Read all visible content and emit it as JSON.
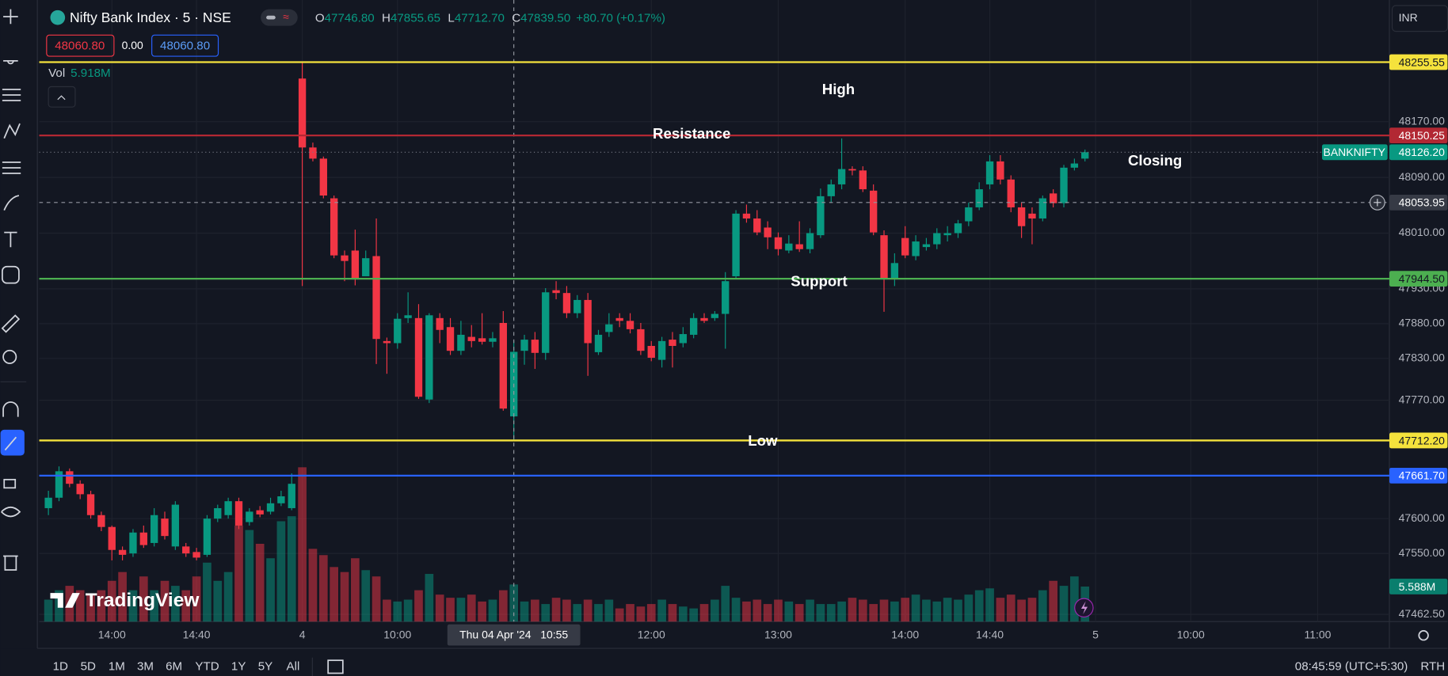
{
  "header": {
    "symbol": "Nifty Bank Index · 5 · NSE",
    "ohlc": [
      {
        "key": "O",
        "value": "47746.80"
      },
      {
        "key": "H",
        "value": "47855.65"
      },
      {
        "key": "L",
        "value": "47712.70"
      },
      {
        "key": "C",
        "value": "47839.50"
      }
    ],
    "change": "+80.70 (+0.17%)",
    "sell_price": "48060.80",
    "spread": "0.00",
    "buy_price": "48060.80",
    "volume_legend": {
      "name": "Vol",
      "value": "5.918M"
    },
    "currency": "INR"
  },
  "chart_data": {
    "type": "candlestick",
    "up_color": "#089981",
    "down_color": "#f23645",
    "x": [
      0,
      1,
      2,
      3,
      4,
      5,
      6,
      7,
      8,
      9,
      10,
      11,
      12,
      13,
      14,
      15,
      16,
      17,
      18,
      19,
      20,
      21,
      22,
      23,
      24,
      25,
      26,
      27,
      28,
      29,
      30,
      31,
      32,
      33,
      34,
      35,
      36,
      37,
      38,
      39,
      40,
      41,
      42,
      43,
      44,
      45,
      46,
      47,
      48,
      49,
      50,
      51,
      52,
      53,
      54,
      55,
      56,
      57,
      58,
      59,
      60,
      61,
      62,
      63,
      64,
      65,
      66,
      67,
      68,
      69,
      70,
      71,
      72,
      73,
      74,
      75,
      76,
      77,
      78,
      79,
      80,
      81,
      82,
      83,
      84,
      85,
      86,
      87,
      88,
      89,
      90,
      91,
      92,
      93,
      94,
      95,
      96,
      97,
      98
    ],
    "open": [
      47615,
      47630,
      47668,
      47650,
      47635,
      47605,
      47588,
      47555,
      47550,
      47580,
      47565,
      47600,
      47560,
      47560,
      47552,
      47548,
      47600,
      47605,
      47625,
      47595,
      47612,
      47610,
      47622,
      47615,
      48232,
      48133,
      48117,
      48060,
      47978,
      47985,
      47948,
      47977,
      47855,
      47852,
      47888,
      47888,
      47771,
      47888,
      47875,
      47841,
      47861,
      47859,
      47854,
      47881,
      47746.8,
      47841,
      47857,
      47838,
      47928,
      47924,
      47895,
      47914,
      47839,
      47868,
      47888,
      47884,
      47872,
      47848,
      47828,
      47857,
      47852,
      47864,
      47888,
      47888,
      47894,
      47948,
      48038,
      48031,
      48018,
      48004,
      47985,
      47994,
      47987,
      48007,
      48063,
      48080,
      48102,
      48100,
      48071,
      48007,
      47945,
      48003,
      47977,
      47990,
      47994,
      48007,
      48010,
      48027,
      48047,
      48080,
      48113,
      48087,
      48047,
      48038,
      48031,
      48067,
      48053,
      48104,
      48117
    ],
    "high": [
      47640,
      47675,
      47672,
      47655,
      47640,
      47610,
      47590,
      47560,
      47585,
      47590,
      47615,
      47610,
      47625,
      47565,
      47558,
      47605,
      47620,
      47630,
      47630,
      47615,
      47618,
      47630,
      47640,
      47665,
      48255.55,
      48140,
      48120,
      48064,
      47985,
      48015,
      47985,
      48031,
      47860,
      47895,
      47925,
      47908,
      47895,
      47895,
      47888,
      47884,
      47878,
      47895,
      47868,
      47898,
      47855.65,
      47864,
      47868,
      47931,
      47941,
      47934,
      47921,
      47924,
      47871,
      47895,
      47895,
      47895,
      47881,
      47855,
      47861,
      47868,
      47875,
      47895,
      47895,
      47898,
      47954,
      48043,
      48051,
      48043,
      48027,
      48011,
      48007,
      48027,
      48017,
      48074,
      48087,
      48146,
      48106,
      48106,
      48080,
      48014,
      47981,
      48020,
      48007,
      48003,
      48017,
      48020,
      48029,
      48054,
      48083,
      48122,
      48122,
      48093,
      48054,
      48047,
      48064,
      48073,
      48108,
      48117,
      48130
    ],
    "low": [
      47605,
      47625,
      47645,
      47628,
      47600,
      47582,
      47540,
      47540,
      47545,
      47558,
      47560,
      47570,
      47555,
      47545,
      47540,
      47545,
      47595,
      47600,
      47585,
      47590,
      47602,
      47606,
      47618,
      47612,
      47934,
      48113,
      48060,
      47974,
      47941,
      47935,
      47948,
      47822,
      47808,
      47844,
      47881,
      47772,
      47766,
      47852,
      47835,
      47835,
      47846,
      47850,
      47846,
      47755,
      47712.7,
      47821,
      47815,
      47828,
      47915,
      47888,
      47888,
      47805,
      47835,
      47861,
      47875,
      47866,
      47835,
      47826,
      47817,
      47817,
      47846,
      47859,
      47881,
      47884,
      47844,
      47945,
      48025,
      48007,
      47987,
      47978,
      47981,
      47983,
      47981,
      48003,
      48054,
      48073,
      48093,
      48069,
      48007,
      47897,
      47934,
      47974,
      47971,
      47985,
      47987,
      47998,
      48003,
      48020,
      48043,
      48073,
      48080,
      48040,
      48003,
      47994,
      48027,
      48047,
      48047,
      48100,
      48113
    ],
    "close": [
      47630,
      47668,
      47650,
      47635,
      47605,
      47588,
      47555,
      47548,
      47580,
      47562,
      47605,
      47575,
      47620,
      47550,
      47544,
      47600,
      47615,
      47625,
      47590,
      47610,
      47606,
      47622,
      47632,
      47650,
      48133,
      48117,
      48064,
      47978,
      47970,
      47945,
      47974,
      47858,
      47852,
      47887,
      47892,
      47775,
      47892,
      47871,
      47841,
      47864,
      47855,
      47854,
      47859,
      47758,
      47839.5,
      47857,
      47838,
      47925,
      47924,
      47895,
      47914,
      47852,
      47864,
      47879,
      47884,
      47872,
      47841,
      47831,
      47855,
      47848,
      47865,
      47888,
      47884,
      47894,
      47941,
      48038,
      48031,
      48011,
      48004,
      47987,
      47995,
      47987,
      48010,
      48063,
      48080,
      48102,
      48100,
      48073,
      48011,
      47945,
      47967,
      47978,
      47998,
      47994,
      48010,
      48010,
      48024,
      48047,
      48073,
      48113,
      48087,
      48047,
      48020,
      48031,
      48060,
      48053,
      48104,
      48110,
      48126.2
    ],
    "volume": [
      3.5,
      5.0,
      5.7,
      5.0,
      4.4,
      5.0,
      6.5,
      7.9,
      5.0,
      7.2,
      5.0,
      6.5,
      5.7,
      5.0,
      7.2,
      9.4,
      6.5,
      7.9,
      15.3,
      14.6,
      12.4,
      10.1,
      16.0,
      16.8,
      24.6,
      11.6,
      10.6,
      8.7,
      7.9,
      10.1,
      8.2,
      7.2,
      3.5,
      3.2,
      3.5,
      5.0,
      7.6,
      4.3,
      3.8,
      3.8,
      4.3,
      3.2,
      3.5,
      5.0,
      5.918,
      3.2,
      3.5,
      2.8,
      3.8,
      3.5,
      2.8,
      3.5,
      2.8,
      3.5,
      2.1,
      2.8,
      2.4,
      2.8,
      3.5,
      2.8,
      2.4,
      2.1,
      2.8,
      3.5,
      5.7,
      3.8,
      3.2,
      3.5,
      2.8,
      3.5,
      3.2,
      2.8,
      3.5,
      2.8,
      2.8,
      3.2,
      3.8,
      3.5,
      2.8,
      3.5,
      3.2,
      3.8,
      4.3,
      3.5,
      3.2,
      3.8,
      3.5,
      4.3,
      5.0,
      5.3,
      3.8,
      4.3,
      3.5,
      3.8,
      5.0,
      6.5,
      5.7,
      7.2,
      5.588
    ],
    "volume_lim": [
      0,
      99.1
    ],
    "volume_value_label": "5.588M",
    "xlim": [
      -0.87,
      126.78
    ],
    "xticks": [
      {
        "value": 6,
        "label": "14:00"
      },
      {
        "value": 14,
        "label": "14:40"
      },
      {
        "value": 24,
        "label": "4"
      },
      {
        "value": 33,
        "label": "10:00"
      },
      {
        "value": 57,
        "label": "12:00"
      },
      {
        "value": 69,
        "label": "13:00"
      },
      {
        "value": 81,
        "label": "14:00"
      },
      {
        "value": 89,
        "label": "14:40"
      },
      {
        "value": 99,
        "label": "5"
      },
      {
        "value": 108,
        "label": "10:00"
      },
      {
        "value": 120,
        "label": "11:00"
      }
    ],
    "ylim": [
      47452.1,
      48344.8
    ],
    "yticks": [
      {
        "value": 48170,
        "label": "48170.00"
      },
      {
        "value": 48090,
        "label": "48090.00"
      },
      {
        "value": 48010,
        "label": "48010.00"
      },
      {
        "value": 47930,
        "label": "47930.00"
      },
      {
        "value": 47880,
        "label": "47880.00"
      },
      {
        "value": 47830,
        "label": "47830.00"
      },
      {
        "value": 47770,
        "label": "47770.00"
      },
      {
        "value": 47600,
        "label": "47600.00"
      },
      {
        "value": 47550,
        "label": "47550.00"
      },
      {
        "value": 47462.5,
        "label": "47462.50"
      }
    ],
    "grid": true,
    "levels": [
      {
        "value": 48255.55,
        "label": "48255.55",
        "color": "#f5e23c",
        "text_color": "#131722"
      },
      {
        "value": 48150.25,
        "label": "48150.25",
        "color": "#b22833",
        "text_color": "#ffffff"
      },
      {
        "value": 47944.5,
        "label": "47944.50",
        "color": "#4caf50",
        "text_color": "#131722"
      },
      {
        "value": 47712.2,
        "label": "47712.20",
        "color": "#f5e23c",
        "text_color": "#131722"
      },
      {
        "value": 47661.7,
        "label": "47661.70",
        "color": "#2962ff",
        "text_color": "#ffffff"
      }
    ],
    "last_price": {
      "symbol": "BANKNIFTY",
      "value": 48126.2,
      "label": "48126.20",
      "color": "#089981"
    },
    "crosshair": {
      "x": 44,
      "date": "Thu 04 Apr '24",
      "time": "10:55",
      "value": 48053.95,
      "label": "48053.95"
    },
    "annotations": [
      "High",
      "Resistance",
      "Closing",
      "Support",
      "Low"
    ]
  },
  "footer": {
    "ranges": [
      "1D",
      "5D",
      "1M",
      "3M",
      "6M",
      "YTD",
      "1Y",
      "5Y",
      "All"
    ],
    "clock": "08:45:59 (UTC+5:30)",
    "session": "RTH",
    "logo": "TradingView"
  }
}
